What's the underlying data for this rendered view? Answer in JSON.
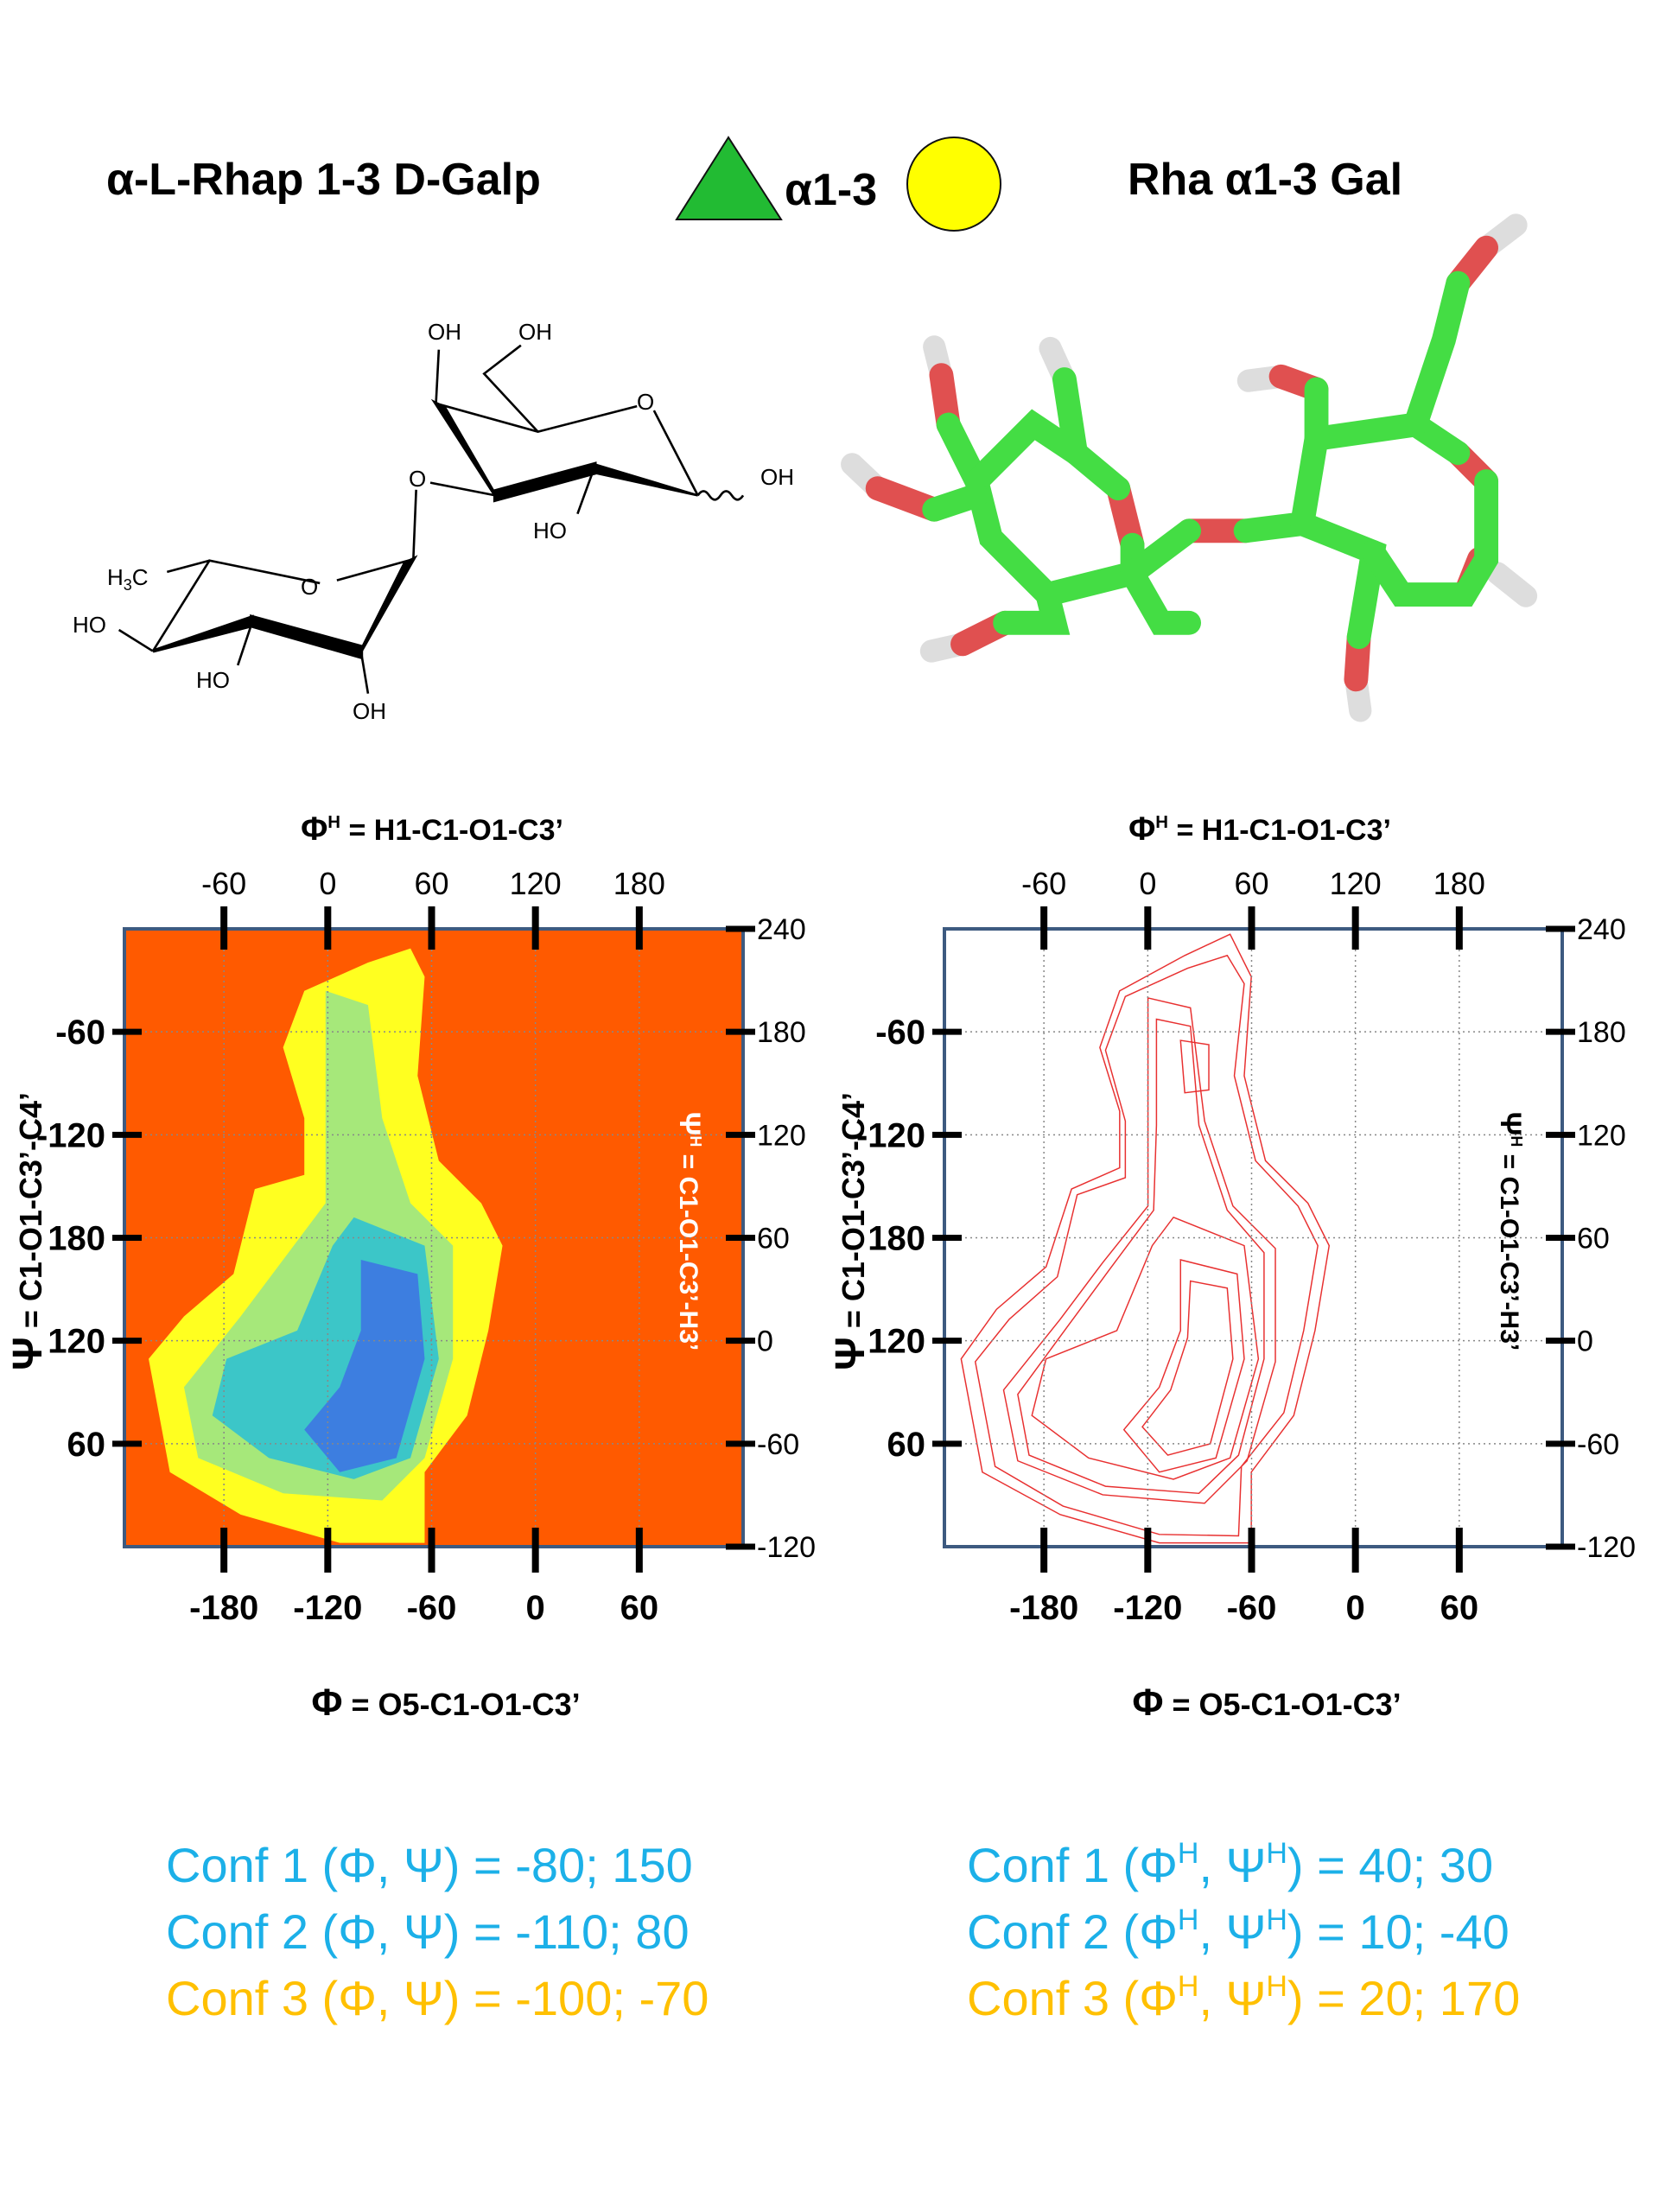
{
  "header": {
    "left_title": "α-L-Rhap 1-3 D-Galp",
    "linkage": "α1-3",
    "right_title": "Rha α1-3 Gal"
  },
  "structure": {
    "labels": [
      "OH",
      "OH",
      "O",
      "OH",
      "HO",
      "O",
      "O",
      "HO",
      "HO",
      "OH"
    ],
    "methyl": [
      "H",
      "3",
      "C"
    ]
  },
  "plots": [
    {
      "top_title": [
        "Φ",
        "H",
        " = H1-C1-O1-C3’"
      ],
      "bottom_title": [
        "Φ",
        " = O5-C1-O1-C3’"
      ],
      "left_title": [
        "Ψ",
        " = C1-O1-C3’-C4’"
      ],
      "right_title": [
        "Ψ",
        "H",
        " = C1-O1-C3’-H3’"
      ],
      "top": {
        "lim": [
          -117.5,
          240
        ],
        "ticks": [
          -60,
          0,
          60,
          120,
          180
        ]
      },
      "bottom": {
        "lim": [
          -237.5,
          120
        ],
        "ticks": [
          -180,
          -120,
          -60,
          0,
          60
        ]
      },
      "left": {
        "lim": [
          0,
          360
        ],
        "ticks": [
          {
            "value": 300,
            "label": "-60"
          },
          {
            "value": 240,
            "label": "-120"
          },
          180,
          120,
          60
        ]
      },
      "right": {
        "lim": [
          -120,
          240
        ],
        "ticks": [
          240,
          180,
          120,
          60,
          0,
          -60,
          -120
        ]
      }
    },
    {
      "top_title": [
        "Φ",
        "H",
        " = H1-C1-O1-C3’"
      ],
      "bottom_title": [
        "Φ",
        " = O5-C1-O1-C3’"
      ],
      "left_title": [
        "Ψ",
        " = C1-O1-C3’-C4’"
      ],
      "right_title": [
        "Ψ",
        "H",
        " = C1-O1-C3’-H3’"
      ],
      "top": {
        "lim": [
          -117.5,
          240
        ],
        "ticks": [
          -60,
          0,
          60,
          120,
          180
        ]
      },
      "bottom": {
        "lim": [
          -237.5,
          120
        ],
        "ticks": [
          -180,
          -120,
          -60,
          0,
          60
        ]
      },
      "left": {
        "lim": [
          0,
          360
        ],
        "ticks": [
          {
            "value": 300,
            "label": "-60"
          },
          {
            "value": 240,
            "label": "-120"
          },
          180,
          120,
          60
        ]
      },
      "right": {
        "lim": [
          -120,
          240
        ],
        "ticks": [
          240,
          180,
          120,
          60,
          0,
          -60,
          -120
        ]
      }
    }
  ],
  "conformers": {
    "left": [
      "Conf 1 (Φ, Ψ) = -80; 150",
      "Conf 2 (Φ, Ψ) =  -110; 80",
      "Conf 3 (Φ, Ψ) =  -100; -70"
    ],
    "right": [
      [
        "Conf 1 (Φ",
        "H",
        ", Ψ",
        "H",
        ") = 40; 30"
      ],
      [
        "Conf 2 (Φ",
        "H",
        ", Ψ",
        "H",
        ") = 10; -40"
      ],
      [
        "Conf 3 (Φ",
        "H",
        ", Ψ",
        "H",
        ") = 20; 170"
      ]
    ]
  }
}
